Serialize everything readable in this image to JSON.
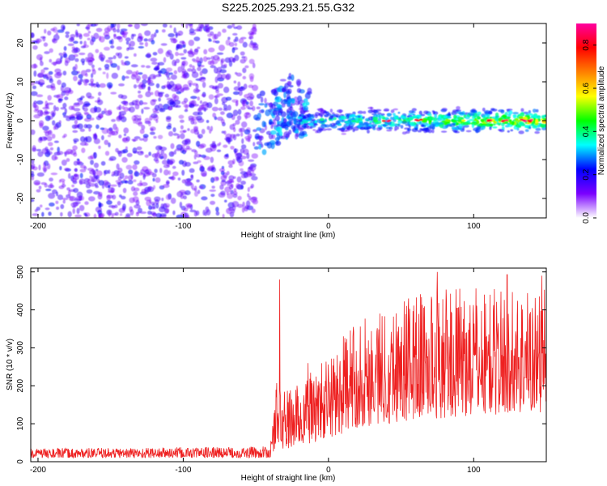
{
  "title": "S225.2025.293.21.55.G32",
  "chart_data": [
    {
      "type": "heatmap",
      "xlabel": "Height of straight line (km)",
      "ylabel": "Frequency (Hz)",
      "xlim": [
        -205,
        150
      ],
      "ylim": [
        -25,
        25
      ],
      "xticks": [
        "-200",
        "-100",
        "0",
        "100"
      ],
      "xtick_values": [
        -200,
        -100,
        0,
        100
      ],
      "yticks": [
        "-20",
        "-10",
        "0",
        "10",
        "20"
      ],
      "ytick_values": [
        -20,
        -10,
        0,
        10,
        20
      ],
      "noise_region_x": [
        -205,
        -50
      ],
      "transition_region_x": [
        -50,
        -20
      ],
      "signal_band": {
        "x_start": -20,
        "x_end": 150,
        "frequency_center": 0,
        "half_width": 2.5
      },
      "peak_amplitude_locations_km": [
        40,
        62,
        110,
        122,
        135,
        140
      ],
      "colorbar": {
        "label": "Normalized spectral amplitude",
        "range": [
          0,
          0.9
        ],
        "ticks": [
          "0.0",
          "0.2",
          "0.4",
          "0.6",
          "0.8"
        ],
        "tick_values": [
          0,
          0.2,
          0.4,
          0.6,
          0.8
        ],
        "colormap": [
          "#ffffff",
          "#7a00ff",
          "#0000ff",
          "#00ffff",
          "#00ff00",
          "#ffff00",
          "#ff8000",
          "#ff0000",
          "#ff00a0"
        ]
      }
    },
    {
      "type": "line",
      "xlabel": "Height of straight line (km)",
      "ylabel": "SNR (10 * v/v)",
      "xlim": [
        -205,
        150
      ],
      "ylim": [
        0,
        510
      ],
      "xticks": [
        "-200",
        "-100",
        "0",
        "100"
      ],
      "xtick_values": [
        -200,
        -100,
        0,
        100
      ],
      "yticks": [
        "0",
        "100",
        "200",
        "300",
        "400",
        "500"
      ],
      "ytick_values": [
        0,
        100,
        200,
        300,
        400,
        500
      ],
      "line_color": "#ee2020",
      "envelope": [
        {
          "x": -205,
          "baseline": 10,
          "amplitude": 25
        },
        {
          "x": -40,
          "baseline": 10,
          "amplitude": 30
        },
        {
          "x": -36,
          "baseline": 40,
          "amplitude": 180
        },
        {
          "x": -30,
          "baseline": 30,
          "amplitude": 160
        },
        {
          "x": -20,
          "baseline": 40,
          "amplitude": 170
        },
        {
          "x": 0,
          "baseline": 60,
          "amplitude": 220
        },
        {
          "x": 20,
          "baseline": 90,
          "amplitude": 290
        },
        {
          "x": 60,
          "baseline": 110,
          "amplitude": 340
        },
        {
          "x": 100,
          "baseline": 120,
          "amplitude": 340
        },
        {
          "x": 150,
          "baseline": 130,
          "amplitude": 330
        }
      ],
      "spikes": [
        {
          "x": -33.5,
          "y": 480
        },
        {
          "x": -14,
          "y": 260
        },
        {
          "x": 75,
          "y": 500
        },
        {
          "x": 123,
          "y": 493
        },
        {
          "x": 147,
          "y": 490
        }
      ]
    }
  ]
}
